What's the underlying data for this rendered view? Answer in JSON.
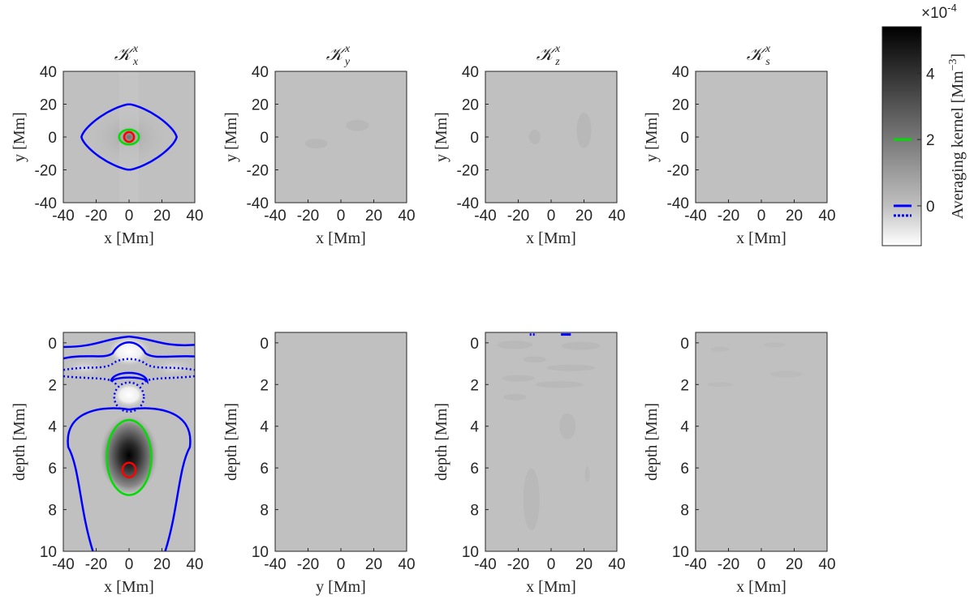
{
  "chart_data": {
    "type": "heatmap",
    "colorbar": {
      "label": "Averaging kernel [Mm",
      "label_exp": "−3",
      "label_end": "]",
      "scale_prefix": "×10",
      "scale_exp": "-4",
      "ticks": [
        "4",
        "2",
        "0"
      ],
      "tick_values": [
        4,
        2,
        0
      ],
      "range": [
        -1.2,
        5.4
      ],
      "contour_legend": [
        {
          "color": "#00dd00",
          "style": "solid",
          "level": 2
        },
        {
          "color": "#0000ff",
          "style": "solid",
          "level": 0
        },
        {
          "color": "#0000ff",
          "style": "dotted",
          "level": 0
        }
      ]
    },
    "panels": [
      {
        "name": "Kxx-horizontal",
        "title": "𝒦",
        "sub": "x",
        "sup": "x",
        "xlabel": "x [Mm]",
        "ylabel": "y [Mm]",
        "xlim": [
          -40,
          40
        ],
        "ylim": [
          -40,
          40
        ],
        "xticks": [
          "-40",
          "-20",
          "0",
          "20",
          "40"
        ],
        "yticks": [
          "40",
          "20",
          "0",
          "-20",
          "-40"
        ]
      },
      {
        "name": "Kyx-horizontal",
        "title": "𝒦",
        "sub": "y",
        "sup": "x",
        "xlabel": "x [Mm]",
        "ylabel": "y [Mm]",
        "xlim": [
          -40,
          40
        ],
        "ylim": [
          -40,
          40
        ],
        "xticks": [
          "-40",
          "-20",
          "0",
          "20",
          "40"
        ],
        "yticks": [
          "40",
          "20",
          "0",
          "-20",
          "-40"
        ]
      },
      {
        "name": "Kzx-horizontal",
        "title": "𝒦",
        "sub": "z",
        "sup": "x",
        "xlabel": "x [Mm]",
        "ylabel": "y [Mm]",
        "xlim": [
          -40,
          40
        ],
        "ylim": [
          -40,
          40
        ],
        "xticks": [
          "-40",
          "-20",
          "0",
          "20",
          "40"
        ],
        "yticks": [
          "40",
          "20",
          "0",
          "-20",
          "-40"
        ]
      },
      {
        "name": "Ksx-horizontal",
        "title": "𝒦",
        "sub": "s",
        "sup": "x",
        "xlabel": "x [Mm]",
        "ylabel": "y [Mm]",
        "xlim": [
          -40,
          40
        ],
        "ylim": [
          -40,
          40
        ],
        "xticks": [
          "-40",
          "-20",
          "0",
          "20",
          "40"
        ],
        "yticks": [
          "40",
          "20",
          "0",
          "-20",
          "-40"
        ]
      },
      {
        "name": "Kxx-depth",
        "xlabel": "x [Mm]",
        "ylabel": "depth [Mm]",
        "xlim": [
          -40,
          40
        ],
        "ylim": [
          -0.5,
          10
        ],
        "xticks": [
          "-40",
          "-20",
          "0",
          "20",
          "40"
        ],
        "yticks": [
          "0",
          "2",
          "4",
          "6",
          "8",
          "10"
        ]
      },
      {
        "name": "Kyx-depth",
        "xlabel": "y [Mm]",
        "ylabel": "depth [Mm]",
        "xlim": [
          -40,
          40
        ],
        "ylim": [
          -0.5,
          10
        ],
        "xticks": [
          "-40",
          "-20",
          "0",
          "20",
          "40"
        ],
        "yticks": [
          "0",
          "2",
          "4",
          "6",
          "8",
          "10"
        ]
      },
      {
        "name": "Kzx-depth",
        "xlabel": "x [Mm]",
        "ylabel": "depth [Mm]",
        "xlim": [
          -40,
          40
        ],
        "ylim": [
          -0.5,
          10
        ],
        "xticks": [
          "-40",
          "-20",
          "0",
          "20",
          "40"
        ],
        "yticks": [
          "0",
          "2",
          "4",
          "6",
          "8",
          "10"
        ]
      },
      {
        "name": "Ksx-depth",
        "xlabel": "x [Mm]",
        "ylabel": "depth [Mm]",
        "xlim": [
          -40,
          40
        ],
        "ylim": [
          -0.5,
          10
        ],
        "xticks": [
          "-40",
          "-20",
          "0",
          "20",
          "40"
        ],
        "yticks": [
          "0",
          "2",
          "4",
          "6",
          "8",
          "10"
        ]
      }
    ],
    "contours": {
      "Kxx-horizontal": [
        {
          "color": "#0000ff",
          "style": "solid",
          "level": 0,
          "shape": "astroid",
          "center": [
            0,
            0
          ],
          "rx": 29,
          "ry": 20
        },
        {
          "color": "#00dd00",
          "style": "solid",
          "level": 2,
          "shape": "ellipse",
          "center": [
            0,
            0
          ],
          "rx": 6,
          "ry": 4.5
        },
        {
          "color": "#ff0000",
          "style": "solid",
          "level": 4,
          "shape": "ellipse",
          "center": [
            0,
            0
          ],
          "rx": 3,
          "ry": 3
        }
      ],
      "Kxx-depth": [
        {
          "color": "#00dd00",
          "style": "solid",
          "level": 2,
          "shape": "ellipse",
          "center": [
            0,
            5.5
          ],
          "rx": 13.5,
          "ry": 1.8
        },
        {
          "color": "#ff0000",
          "style": "solid",
          "level": 4,
          "shape": "ellipse",
          "center": [
            0,
            6.1
          ],
          "rx": 4,
          "ry": 0.35
        }
      ]
    }
  }
}
